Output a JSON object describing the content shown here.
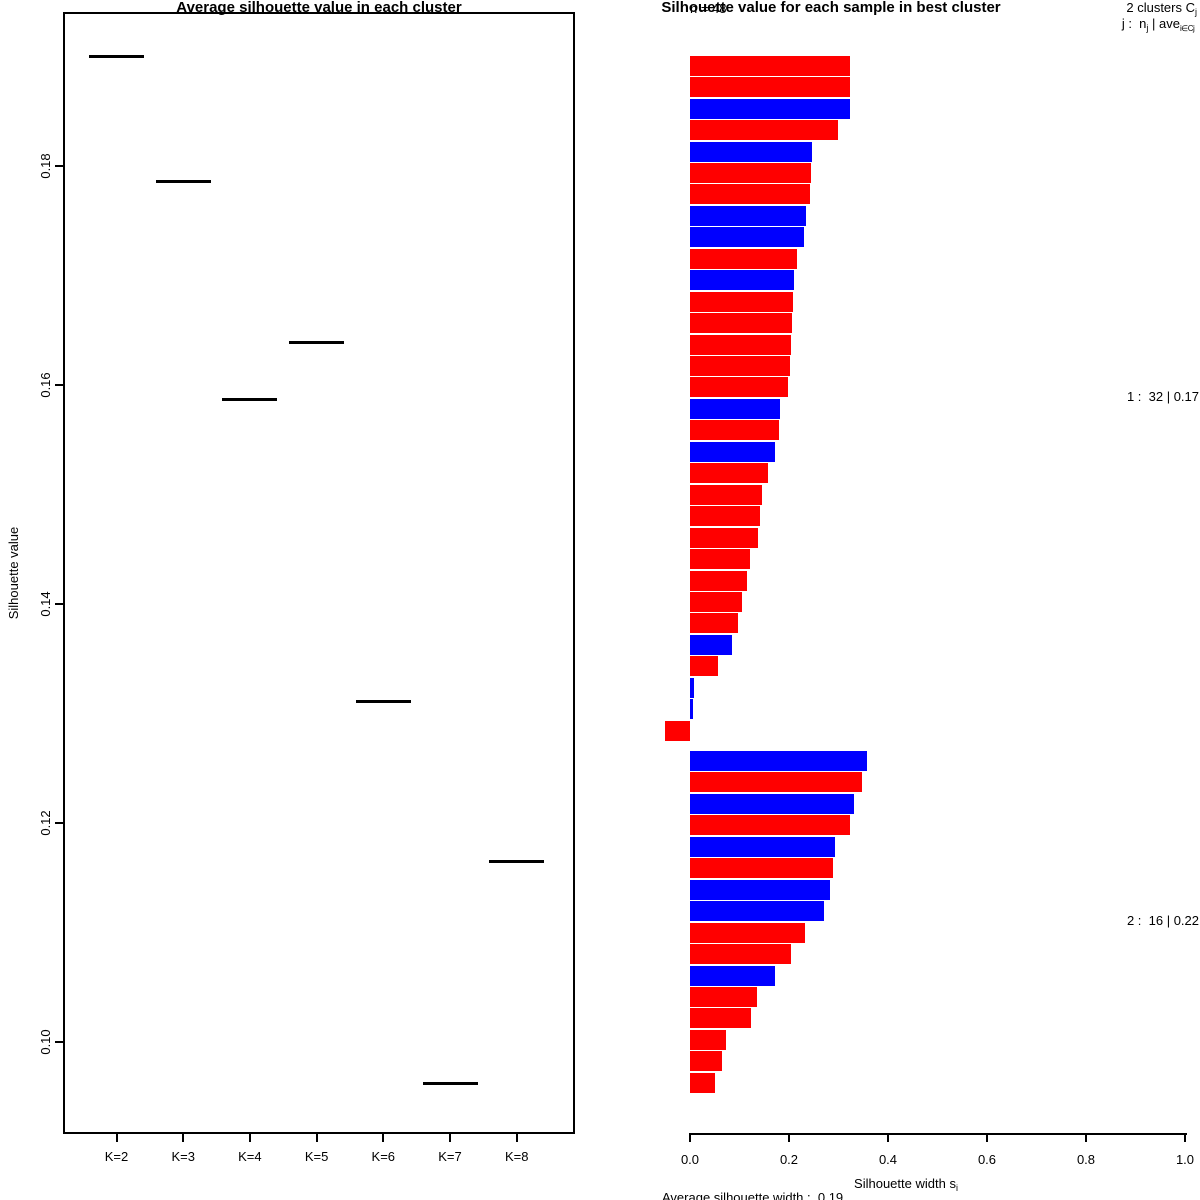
{
  "figure": {
    "left": {
      "title": "Average silhouette value in each cluster",
      "ylabel": "Silhouette value"
    },
    "right": {
      "title": "Silhouette value for each sample in best cluster",
      "n_label": "n = 48",
      "clusters_line1": {
        "prefix": "2 clusters C",
        "sub": "j"
      },
      "clusters_line2": {
        "p1": "j :  n",
        "s1": "j",
        "p2": " | ave",
        "s2": "i∈Cj",
        "p3": "  s",
        "s3": "i"
      },
      "xlabel": {
        "prefix": "Silhouette width s",
        "sub": "i"
      },
      "subtitle": "Average silhouette width :  0.19"
    }
  },
  "chart_data": [
    {
      "type": "scatter",
      "marker": "horizontal-segment",
      "title": "Average silhouette value in each cluster",
      "xlabel": "",
      "ylabel": "Silhouette value",
      "categories": [
        "K=2",
        "K=3",
        "K=4",
        "K=5",
        "K=6",
        "K=7",
        "K=8"
      ],
      "values": [
        0.19,
        0.1786,
        0.1587,
        0.1639,
        0.1311,
        0.0962,
        0.1165
      ],
      "yticks": [
        0.1,
        0.12,
        0.14,
        0.16,
        0.18
      ],
      "ylim": [
        0.092,
        0.194
      ],
      "grid": false,
      "segment_color": "#000000"
    },
    {
      "type": "bar",
      "orientation": "horizontal",
      "title": "Silhouette value for each sample in best cluster",
      "xlabel": "Silhouette width s_i",
      "subtitle": "Average silhouette width :  0.19",
      "n": 48,
      "k_clusters": 2,
      "xticks": [
        0.0,
        0.2,
        0.4,
        0.6,
        0.8,
        1.0
      ],
      "xlim": [
        -0.06,
        1.0
      ],
      "grid": false,
      "bar_colors": {
        "red": "#ff0000",
        "blue": "#0000ff"
      },
      "clusters": [
        {
          "label": "1 :  32 | 0.17",
          "size": 32,
          "avg_width": 0.17,
          "values": [
            0.324,
            0.323,
            0.323,
            0.299,
            0.246,
            0.245,
            0.242,
            0.234,
            0.23,
            0.216,
            0.21,
            0.209,
            0.206,
            0.204,
            0.202,
            0.197,
            0.182,
            0.18,
            0.172,
            0.157,
            0.145,
            0.141,
            0.137,
            0.121,
            0.115,
            0.105,
            0.097,
            0.085,
            0.057,
            0.008,
            0.006,
            -0.051
          ],
          "colors": [
            "red",
            "red",
            "blue",
            "red",
            "blue",
            "red",
            "red",
            "blue",
            "blue",
            "red",
            "blue",
            "red",
            "red",
            "red",
            "red",
            "red",
            "blue",
            "red",
            "blue",
            "red",
            "red",
            "red",
            "red",
            "red",
            "red",
            "red",
            "red",
            "blue",
            "red",
            "blue",
            "blue",
            "red"
          ]
        },
        {
          "label": "2 :  16 | 0.22",
          "size": 16,
          "avg_width": 0.22,
          "values": [
            0.358,
            0.347,
            0.331,
            0.323,
            0.293,
            0.289,
            0.283,
            0.271,
            0.232,
            0.204,
            0.172,
            0.135,
            0.123,
            0.073,
            0.065,
            0.051
          ],
          "colors": [
            "blue",
            "red",
            "blue",
            "red",
            "blue",
            "red",
            "blue",
            "blue",
            "red",
            "red",
            "blue",
            "red",
            "red",
            "red",
            "red",
            "red"
          ]
        }
      ]
    }
  ]
}
